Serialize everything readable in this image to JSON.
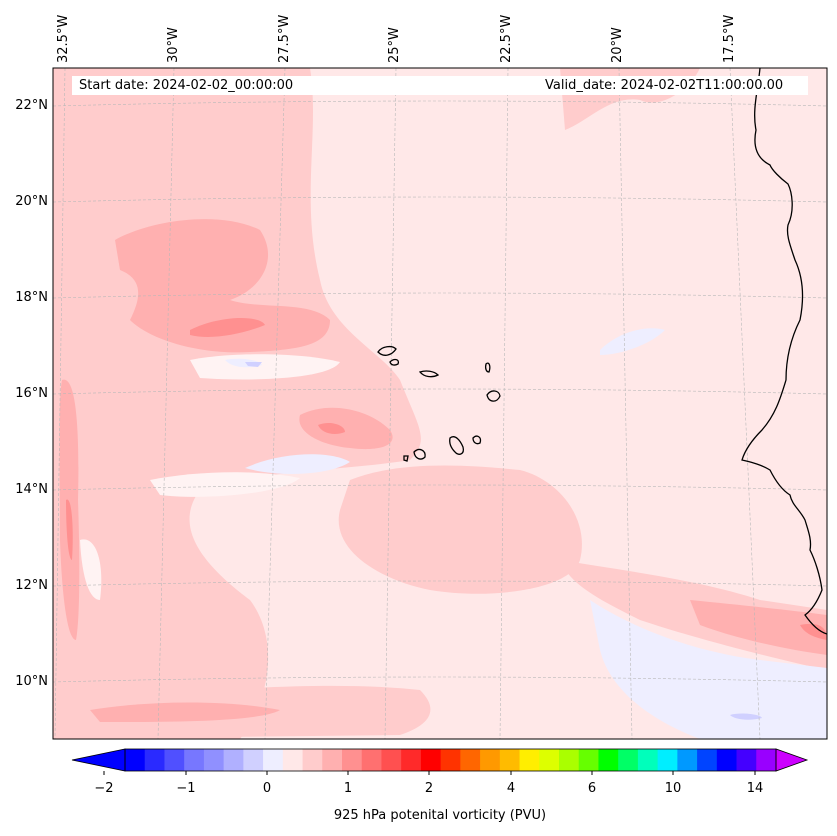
{
  "header": {
    "start_date": "Start date: 2024-02-02_00:00:00",
    "valid_date": "Valid_date: 2024-02-02T11:00:00.00"
  },
  "map": {
    "lon_labels": [
      "32.5°W",
      "30°W",
      "27.5°W",
      "25°W",
      "22.5°W",
      "20°W",
      "17.5°W"
    ],
    "lat_labels": [
      "22°N",
      "20°N",
      "18°N",
      "16°N",
      "14°N",
      "12°N",
      "10°N"
    ],
    "background_color": "#ffe8e8"
  },
  "colorbar": {
    "label": "925 hPa potenital vorticity (PVU)",
    "tick_labels": [
      "−2",
      "−1",
      "0",
      "1",
      "2",
      "4",
      "6",
      "10",
      "14"
    ],
    "colors": [
      "#0000ff",
      "#2a2aff",
      "#5050ff",
      "#7777ff",
      "#9090ff",
      "#b0b0ff",
      "#d0d0ff",
      "#eeeeff",
      "#ffe8e8",
      "#ffcccc",
      "#ffb0b0",
      "#ff9090",
      "#ff7070",
      "#ff5050",
      "#ff2a2a",
      "#ff0000",
      "#ff3300",
      "#ff6600",
      "#ff9900",
      "#ffbb00",
      "#ffee00",
      "#ddff00",
      "#aaff00",
      "#66ff00",
      "#00ff00",
      "#00ff66",
      "#00ffbb",
      "#00eeff",
      "#0099ff",
      "#0044ff",
      "#0000ff",
      "#4400ff",
      "#9900ff"
    ],
    "extend_left_color": "#0000ff",
    "extend_right_color": "#cc00ff"
  }
}
